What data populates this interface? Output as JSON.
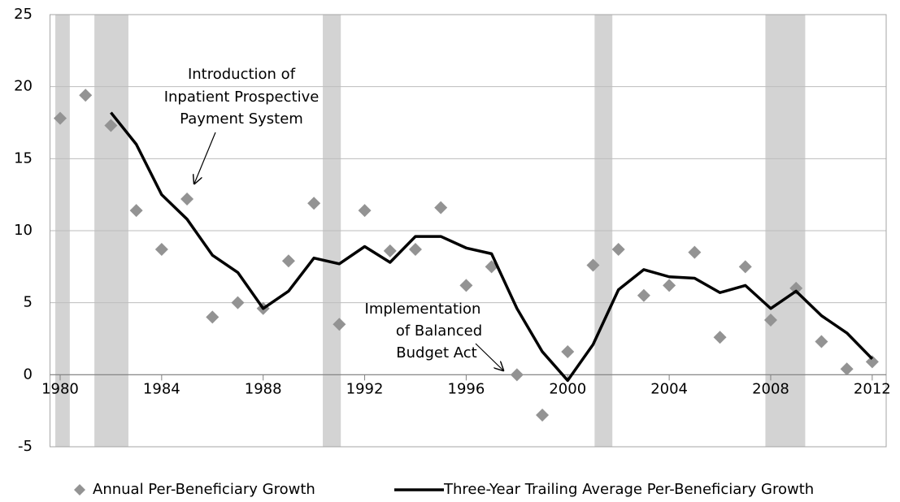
{
  "chart_data": {
    "type": "scatter-line",
    "x": [
      1980,
      1981,
      1982,
      1983,
      1984,
      1985,
      1986,
      1987,
      1988,
      1989,
      1990,
      1991,
      1992,
      1993,
      1994,
      1995,
      1996,
      1997,
      1998,
      1999,
      2000,
      2001,
      2002,
      2003,
      2004,
      2005,
      2006,
      2007,
      2008,
      2009,
      2010,
      2011,
      2012
    ],
    "series": [
      {
        "name": "Annual Per-Beneficiary Growth",
        "kind": "scatter",
        "color": "#939393",
        "values": [
          17.8,
          19.4,
          17.3,
          11.4,
          8.7,
          12.2,
          4.0,
          5.0,
          4.6,
          7.9,
          11.9,
          3.5,
          11.4,
          8.6,
          8.7,
          11.6,
          6.2,
          7.5,
          0.0,
          -2.8,
          1.6,
          7.6,
          8.7,
          5.5,
          6.2,
          8.5,
          2.6,
          7.5,
          3.8,
          6.0,
          2.3,
          0.4,
          0.9
        ]
      },
      {
        "name": "Three-Year Trailing Average Per-Beneficiary Growth",
        "kind": "line",
        "color": "#000000",
        "values": [
          null,
          null,
          18.2,
          16.0,
          12.5,
          10.8,
          8.3,
          7.1,
          4.6,
          5.8,
          8.1,
          7.7,
          8.9,
          7.8,
          9.6,
          9.6,
          8.8,
          8.4,
          4.6,
          1.6,
          -0.4,
          2.1,
          5.9,
          7.3,
          6.8,
          6.7,
          5.7,
          6.2,
          4.6,
          5.8,
          4.1,
          2.9,
          1.1
        ]
      }
    ],
    "xlim": [
      1979.6,
      2012.55
    ],
    "xticks": [
      1980,
      1984,
      1988,
      1992,
      1996,
      2000,
      2004,
      2008,
      2012
    ],
    "ylim": [
      -5,
      25
    ],
    "yticks": [
      -5,
      0,
      5,
      10,
      15,
      20,
      25
    ],
    "grid": true,
    "shaded_ranges": [
      [
        1979.81,
        1980.38
      ],
      [
        1981.35,
        1982.69
      ],
      [
        1990.35,
        1991.06
      ],
      [
        2001.06,
        2001.76
      ],
      [
        2007.79,
        2009.36
      ]
    ],
    "shade_color": "#d3d3d3",
    "annotations": [
      {
        "lines": [
          "Introduction of",
          "Inpatient Prospective",
          "Payment System"
        ]
      },
      {
        "lines": [
          "Implementation",
          "of Balanced",
          "Budget Act"
        ]
      }
    ]
  }
}
